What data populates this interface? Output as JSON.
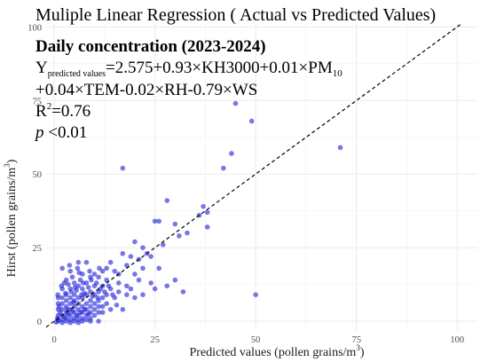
{
  "chart_data": {
    "type": "scatter",
    "title": "Muliple Linear Regression ( Actual vs Predicted Values)",
    "xlabel": {
      "main": "Predicted values (pollen grains/m",
      "sup": "3",
      "tail": ")"
    },
    "ylabel": {
      "main": "Hirst (pollen grains/m",
      "sup": "3",
      "tail": ")"
    },
    "xlim": [
      -2,
      105
    ],
    "ylim": [
      -3,
      101
    ],
    "x_ticks": [
      0,
      25,
      50,
      75,
      100
    ],
    "y_ticks": [
      0,
      25,
      50,
      75,
      100
    ],
    "grid": true,
    "legend": "none",
    "reference_line": {
      "type": "y=x",
      "style": "dashed",
      "color": "#000000"
    },
    "point_color": "#2323d8",
    "annotations": {
      "heading": "Daily concentration (2023-2024)",
      "equation": {
        "y": "Y",
        "y_sub": "predicted values",
        "line1": "=2.575+0.93×KH3000+0.01×PM",
        "line1_sub": "10",
        "line2": "+0.04×TEM-0.02×RH-0.79×WS"
      },
      "r2": {
        "r": "R",
        "sup": "2",
        "value": "=0.76"
      },
      "p": {
        "p": "p",
        "value": " <0.01"
      }
    },
    "points": [
      [
        45,
        74
      ],
      [
        49,
        68
      ],
      [
        71,
        59
      ],
      [
        44,
        57
      ],
      [
        17,
        52
      ],
      [
        42,
        52
      ],
      [
        28,
        41
      ],
      [
        37,
        39
      ],
      [
        38,
        37
      ],
      [
        36,
        36
      ],
      [
        30,
        33
      ],
      [
        25,
        34
      ],
      [
        26,
        34
      ],
      [
        33,
        30
      ],
      [
        38,
        32
      ],
      [
        31,
        29
      ],
      [
        20,
        27
      ],
      [
        27,
        26
      ],
      [
        22,
        25
      ],
      [
        23,
        23
      ],
      [
        19,
        22
      ],
      [
        21,
        21
      ],
      [
        24,
        22
      ],
      [
        17,
        23
      ],
      [
        18,
        19
      ],
      [
        14,
        20
      ],
      [
        22,
        18
      ],
      [
        26,
        18
      ],
      [
        13,
        18
      ],
      [
        15,
        17
      ],
      [
        20,
        16
      ],
      [
        21,
        14
      ],
      [
        24,
        13
      ],
      [
        30,
        14
      ],
      [
        32,
        10
      ],
      [
        50,
        9
      ],
      [
        16,
        16
      ],
      [
        12,
        17
      ],
      [
        10,
        16
      ],
      [
        11,
        15
      ],
      [
        13,
        14
      ],
      [
        16,
        13
      ],
      [
        18,
        12
      ],
      [
        28,
        12
      ],
      [
        25,
        11
      ],
      [
        19,
        11
      ],
      [
        14,
        11
      ],
      [
        12,
        12
      ],
      [
        17,
        4
      ],
      [
        8,
        20
      ],
      [
        6,
        20
      ],
      [
        2,
        18
      ],
      [
        4,
        17
      ],
      [
        7,
        16
      ],
      [
        9,
        15
      ],
      [
        3,
        14
      ],
      [
        5,
        13
      ],
      [
        8,
        13
      ],
      [
        10,
        12
      ],
      [
        6,
        12
      ],
      [
        2,
        11
      ],
      [
        4,
        11
      ],
      [
        7,
        11
      ],
      [
        9,
        10
      ],
      [
        11,
        10
      ],
      [
        13,
        9
      ],
      [
        3,
        9
      ],
      [
        5,
        9
      ],
      [
        8,
        9
      ],
      [
        10,
        9
      ],
      [
        12,
        8
      ],
      [
        1,
        8
      ],
      [
        2,
        8
      ],
      [
        4,
        8
      ],
      [
        6,
        8
      ],
      [
        7,
        8
      ],
      [
        9,
        7
      ],
      [
        11,
        7
      ],
      [
        3,
        7
      ],
      [
        5,
        7
      ],
      [
        1,
        6
      ],
      [
        2,
        6
      ],
      [
        4,
        6
      ],
      [
        6,
        6
      ],
      [
        8,
        6
      ],
      [
        10,
        6
      ],
      [
        12,
        5
      ],
      [
        3,
        5
      ],
      [
        5,
        5
      ],
      [
        7,
        5
      ],
      [
        9,
        5
      ],
      [
        1,
        4
      ],
      [
        2,
        4
      ],
      [
        4,
        4
      ],
      [
        6,
        4
      ],
      [
        8,
        4
      ],
      [
        10,
        4
      ],
      [
        3,
        3
      ],
      [
        5,
        3
      ],
      [
        7,
        3
      ],
      [
        9,
        3
      ],
      [
        11,
        3
      ],
      [
        1,
        2
      ],
      [
        2,
        2
      ],
      [
        4,
        2
      ],
      [
        6,
        2
      ],
      [
        8,
        2
      ],
      [
        10,
        2
      ],
      [
        3,
        1
      ],
      [
        5,
        1
      ],
      [
        7,
        1
      ],
      [
        9,
        1
      ],
      [
        1,
        0.5
      ],
      [
        2,
        0.5
      ],
      [
        4,
        0.5
      ],
      [
        6,
        0.5
      ],
      [
        8,
        0.5
      ],
      [
        1,
        0
      ],
      [
        3,
        0
      ],
      [
        5,
        0
      ],
      [
        7,
        0
      ],
      [
        9,
        0
      ],
      [
        11,
        0
      ],
      [
        2,
        -0.5
      ],
      [
        4,
        -0.5
      ],
      [
        6,
        -0.5
      ],
      [
        3.5,
        12.5
      ],
      [
        5.5,
        10.5
      ],
      [
        6.5,
        14
      ],
      [
        7.5,
        9.5
      ],
      [
        4.5,
        15
      ],
      [
        2.5,
        13
      ],
      [
        8.5,
        11.5
      ],
      [
        9.5,
        8.5
      ],
      [
        10.5,
        13
      ],
      [
        11.5,
        11
      ],
      [
        12.5,
        10
      ],
      [
        13.5,
        12
      ],
      [
        14.5,
        9
      ],
      [
        15,
        8
      ],
      [
        13,
        6
      ],
      [
        11,
        5
      ],
      [
        14,
        4
      ],
      [
        12,
        3
      ],
      [
        15.5,
        5.5
      ],
      [
        16,
        10
      ],
      [
        18,
        9
      ],
      [
        20,
        8
      ],
      [
        22,
        9
      ],
      [
        1.5,
        3
      ],
      [
        2.5,
        1.5
      ],
      [
        3.5,
        2.5
      ],
      [
        4.5,
        3.5
      ],
      [
        5.5,
        2
      ],
      [
        6.5,
        3
      ],
      [
        7.5,
        4
      ],
      [
        8.5,
        2.5
      ],
      [
        0.8,
        1
      ],
      [
        1.2,
        5
      ],
      [
        0.5,
        -0.3
      ],
      [
        2.8,
        9.5
      ],
      [
        3.2,
        4
      ],
      [
        4.8,
        6.5
      ],
      [
        5.2,
        11.5
      ],
      [
        6.8,
        9
      ],
      [
        7.2,
        13
      ],
      [
        8.8,
        17
      ],
      [
        9.2,
        14
      ],
      [
        10.8,
        8
      ],
      [
        11.2,
        18
      ],
      [
        3.8,
        19
      ],
      [
        5.8,
        18
      ],
      [
        1.8,
        12
      ],
      [
        0.9,
        9
      ],
      [
        4.2,
        10
      ],
      [
        6.2,
        16.5
      ]
    ]
  }
}
